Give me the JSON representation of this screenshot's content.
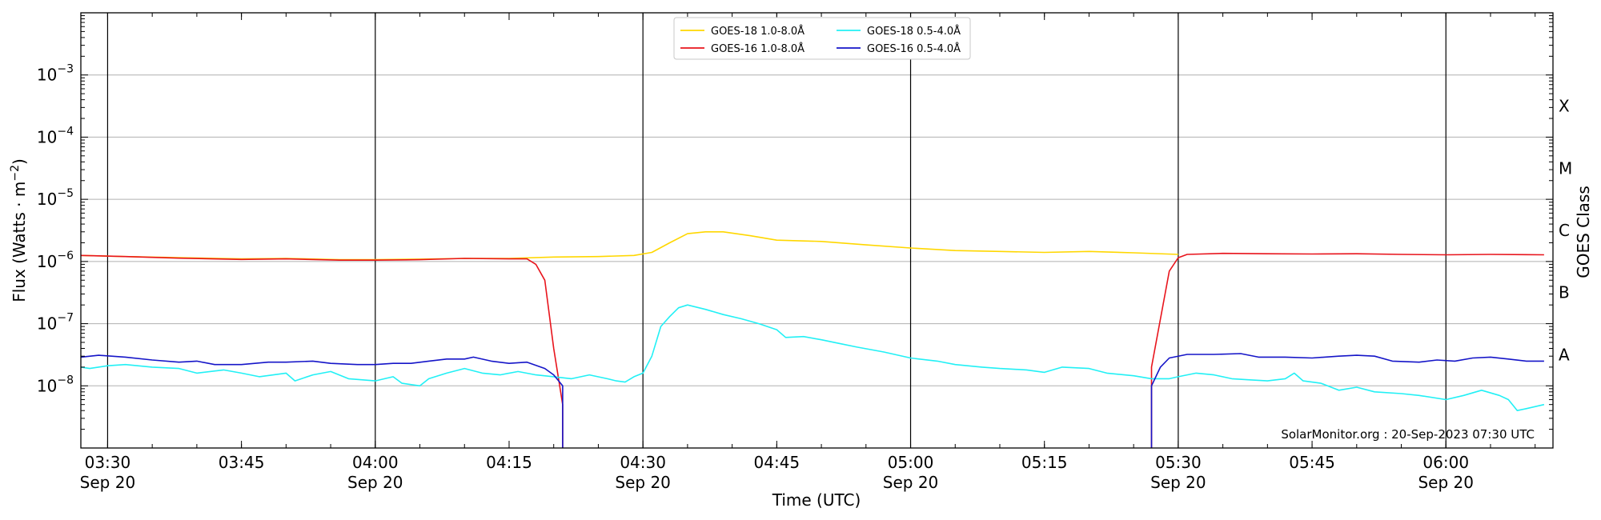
{
  "chart_data": {
    "type": "line",
    "title": "",
    "xlabel": "Time (UTC)",
    "ylabel": "Flux (Watts · m",
    "ylabel_sup": "−2",
    "ylabel_close": ")",
    "y2label": "GOES Class",
    "y_scale": "log",
    "xlim": [
      "03:27",
      "06:12"
    ],
    "ylim": [
      1e-09,
      0.01
    ],
    "grid": "horizontal at decades + vertical at half hours",
    "legend_position": "top-center",
    "credit": "SolarMonitor.org : 20-Sep-2023 07:30 UTC",
    "x_ticks": [
      {
        "t": "03:30",
        "label": "03:30",
        "date": "Sep 20"
      },
      {
        "t": "03:45",
        "label": "03:45",
        "date": ""
      },
      {
        "t": "04:00",
        "label": "04:00",
        "date": "Sep 20"
      },
      {
        "t": "04:15",
        "label": "04:15",
        "date": ""
      },
      {
        "t": "04:30",
        "label": "04:30",
        "date": "Sep 20"
      },
      {
        "t": "04:45",
        "label": "04:45",
        "date": ""
      },
      {
        "t": "05:00",
        "label": "05:00",
        "date": "Sep 20"
      },
      {
        "t": "05:15",
        "label": "05:15",
        "date": ""
      },
      {
        "t": "05:30",
        "label": "05:30",
        "date": "Sep 20"
      },
      {
        "t": "05:45",
        "label": "05:45",
        "date": ""
      },
      {
        "t": "06:00",
        "label": "06:00",
        "date": "Sep 20"
      }
    ],
    "y_ticks": [
      {
        "exp": -8,
        "base": "10",
        "sup": "−8"
      },
      {
        "exp": -7,
        "base": "10",
        "sup": "−7"
      },
      {
        "exp": -6,
        "base": "10",
        "sup": "−6"
      },
      {
        "exp": -5,
        "base": "10",
        "sup": "−5"
      },
      {
        "exp": -4,
        "base": "10",
        "sup": "−4"
      },
      {
        "exp": -3,
        "base": "10",
        "sup": "−3"
      }
    ],
    "goes_classes": [
      {
        "label": "A",
        "value": 1e-08
      },
      {
        "label": "B",
        "value": 1e-07
      },
      {
        "label": "C",
        "value": 1e-06
      },
      {
        "label": "M",
        "value": 1e-05
      },
      {
        "label": "X",
        "value": 0.0001
      }
    ],
    "series": [
      {
        "name": "GOES-18 1.0-8.0Å",
        "color": "#FFD700",
        "points": [
          [
            "03:27",
            1.25e-06
          ],
          [
            "03:32",
            1.2e-06
          ],
          [
            "03:38",
            1.15e-06
          ],
          [
            "03:45",
            1.1e-06
          ],
          [
            "03:50",
            1.12e-06
          ],
          [
            "03:56",
            1.07e-06
          ],
          [
            "04:00",
            1.07e-06
          ],
          [
            "04:05",
            1.09e-06
          ],
          [
            "04:10",
            1.12e-06
          ],
          [
            "04:15",
            1.12e-06
          ],
          [
            "04:20",
            1.18e-06
          ],
          [
            "04:25",
            1.2e-06
          ],
          [
            "04:29",
            1.25e-06
          ],
          [
            "04:31",
            1.4e-06
          ],
          [
            "04:33",
            2e-06
          ],
          [
            "04:35",
            2.8e-06
          ],
          [
            "04:37",
            3e-06
          ],
          [
            "04:39",
            3e-06
          ],
          [
            "04:42",
            2.6e-06
          ],
          [
            "04:45",
            2.2e-06
          ],
          [
            "04:50",
            2.1e-06
          ],
          [
            "04:55",
            1.85e-06
          ],
          [
            "05:00",
            1.65e-06
          ],
          [
            "05:05",
            1.5e-06
          ],
          [
            "05:10",
            1.45e-06
          ],
          [
            "05:15",
            1.4e-06
          ],
          [
            "05:20",
            1.45e-06
          ],
          [
            "05:25",
            1.38e-06
          ],
          [
            "05:30",
            1.3e-06
          ]
        ]
      },
      {
        "name": "GOES-16 1.0-8.0Å",
        "color": "#E8141C",
        "points": [
          [
            "03:27",
            1.25e-06
          ],
          [
            "03:32",
            1.2e-06
          ],
          [
            "03:38",
            1.13e-06
          ],
          [
            "03:45",
            1.08e-06
          ],
          [
            "03:50",
            1.1e-06
          ],
          [
            "03:56",
            1.05e-06
          ],
          [
            "04:00",
            1.05e-06
          ],
          [
            "04:05",
            1.07e-06
          ],
          [
            "04:10",
            1.12e-06
          ],
          [
            "04:15",
            1.1e-06
          ],
          [
            "04:17",
            1.1e-06
          ],
          [
            "04:18",
            9e-07
          ],
          [
            "04:19",
            5e-07
          ],
          [
            "04:20",
            4e-08
          ],
          [
            "04:21",
            5e-09
          ],
          [
            "04:21",
            1e-09
          ]
        ]
      },
      {
        "name": "GOES-16 1.0-8.0Å (resumed)",
        "color": "#E8141C",
        "points": [
          [
            "05:27",
            1e-09
          ],
          [
            "05:27",
            2e-08
          ],
          [
            "05:29",
            7e-07
          ],
          [
            "05:30",
            1.15e-06
          ],
          [
            "05:31",
            1.3e-06
          ],
          [
            "05:35",
            1.35e-06
          ],
          [
            "05:40",
            1.33e-06
          ],
          [
            "05:45",
            1.32e-06
          ],
          [
            "05:50",
            1.33e-06
          ],
          [
            "05:55",
            1.3e-06
          ],
          [
            "06:00",
            1.28e-06
          ],
          [
            "06:05",
            1.3e-06
          ],
          [
            "06:11",
            1.28e-06
          ]
        ]
      },
      {
        "name": "GOES-18 0.5-4.0Å",
        "color": "#22F0F5",
        "points": [
          [
            "03:27",
            2e-08
          ],
          [
            "03:28",
            1.9e-08
          ],
          [
            "03:30",
            2.1e-08
          ],
          [
            "03:32",
            2.2e-08
          ],
          [
            "03:35",
            2e-08
          ],
          [
            "03:38",
            1.9e-08
          ],
          [
            "03:40",
            1.6e-08
          ],
          [
            "03:43",
            1.8e-08
          ],
          [
            "03:45",
            1.6e-08
          ],
          [
            "03:47",
            1.4e-08
          ],
          [
            "03:50",
            1.6e-08
          ],
          [
            "03:51",
            1.2e-08
          ],
          [
            "03:53",
            1.5e-08
          ],
          [
            "03:55",
            1.7e-08
          ],
          [
            "03:57",
            1.3e-08
          ],
          [
            "04:00",
            1.2e-08
          ],
          [
            "04:02",
            1.4e-08
          ],
          [
            "04:03",
            1.1e-08
          ],
          [
            "04:05",
            1e-08
          ],
          [
            "04:06",
            1.3e-08
          ],
          [
            "04:08",
            1.6e-08
          ],
          [
            "04:10",
            1.9e-08
          ],
          [
            "04:12",
            1.6e-08
          ],
          [
            "04:14",
            1.5e-08
          ],
          [
            "04:16",
            1.7e-08
          ],
          [
            "04:18",
            1.5e-08
          ],
          [
            "04:20",
            1.4e-08
          ],
          [
            "04:22",
            1.3e-08
          ],
          [
            "04:24",
            1.5e-08
          ],
          [
            "04:26",
            1.3e-08
          ],
          [
            "04:27",
            1.2e-08
          ],
          [
            "04:28",
            1.15e-08
          ],
          [
            "04:29",
            1.4e-08
          ],
          [
            "04:30",
            1.6e-08
          ],
          [
            "04:31",
            3e-08
          ],
          [
            "04:32",
            9e-08
          ],
          [
            "04:33",
            1.3e-07
          ],
          [
            "04:34",
            1.8e-07
          ],
          [
            "04:35",
            2e-07
          ],
          [
            "04:37",
            1.7e-07
          ],
          [
            "04:39",
            1.4e-07
          ],
          [
            "04:41",
            1.2e-07
          ],
          [
            "04:43",
            1e-07
          ],
          [
            "04:45",
            8e-08
          ],
          [
            "04:46",
            6e-08
          ],
          [
            "04:48",
            6.2e-08
          ],
          [
            "04:50",
            5.5e-08
          ],
          [
            "04:52",
            4.8e-08
          ],
          [
            "04:54",
            4.2e-08
          ],
          [
            "04:57",
            3.5e-08
          ],
          [
            "05:00",
            2.8e-08
          ],
          [
            "05:03",
            2.5e-08
          ],
          [
            "05:05",
            2.2e-08
          ],
          [
            "05:08",
            2e-08
          ],
          [
            "05:10",
            1.9e-08
          ],
          [
            "05:13",
            1.8e-08
          ],
          [
            "05:15",
            1.65e-08
          ],
          [
            "05:17",
            2e-08
          ],
          [
            "05:20",
            1.9e-08
          ],
          [
            "05:22",
            1.6e-08
          ],
          [
            "05:25",
            1.45e-08
          ],
          [
            "05:27",
            1.3e-08
          ],
          [
            "05:29",
            1.3e-08
          ],
          [
            "05:30",
            1.4e-08
          ],
          [
            "05:32",
            1.6e-08
          ],
          [
            "05:34",
            1.5e-08
          ],
          [
            "05:36",
            1.3e-08
          ],
          [
            "05:38",
            1.25e-08
          ],
          [
            "05:40",
            1.2e-08
          ],
          [
            "05:42",
            1.3e-08
          ],
          [
            "05:43",
            1.6e-08
          ],
          [
            "05:44",
            1.2e-08
          ],
          [
            "05:46",
            1.1e-08
          ],
          [
            "05:48",
            8.5e-09
          ],
          [
            "05:50",
            9.5e-09
          ],
          [
            "05:52",
            8e-09
          ],
          [
            "05:55",
            7.5e-09
          ],
          [
            "05:57",
            7e-09
          ],
          [
            "06:00",
            6e-09
          ],
          [
            "06:02",
            7e-09
          ],
          [
            "06:04",
            8.5e-09
          ],
          [
            "06:06",
            7e-09
          ],
          [
            "06:07",
            6e-09
          ],
          [
            "06:08",
            4e-09
          ],
          [
            "06:09",
            4.3e-09
          ],
          [
            "06:11",
            5e-09
          ]
        ]
      },
      {
        "name": "GOES-16 0.5-4.0Å",
        "color": "#1515C8",
        "points": [
          [
            "03:27",
            2.9e-08
          ],
          [
            "03:29",
            3.1e-08
          ],
          [
            "03:32",
            2.9e-08
          ],
          [
            "03:35",
            2.6e-08
          ],
          [
            "03:38",
            2.4e-08
          ],
          [
            "03:40",
            2.5e-08
          ],
          [
            "03:42",
            2.2e-08
          ],
          [
            "03:45",
            2.2e-08
          ],
          [
            "03:48",
            2.4e-08
          ],
          [
            "03:50",
            2.4e-08
          ],
          [
            "03:53",
            2.5e-08
          ],
          [
            "03:55",
            2.3e-08
          ],
          [
            "03:58",
            2.2e-08
          ],
          [
            "04:00",
            2.2e-08
          ],
          [
            "04:02",
            2.3e-08
          ],
          [
            "04:04",
            2.3e-08
          ],
          [
            "04:06",
            2.5e-08
          ],
          [
            "04:08",
            2.7e-08
          ],
          [
            "04:10",
            2.7e-08
          ],
          [
            "04:11",
            2.9e-08
          ],
          [
            "04:13",
            2.5e-08
          ],
          [
            "04:15",
            2.3e-08
          ],
          [
            "04:17",
            2.4e-08
          ],
          [
            "04:19",
            1.9e-08
          ],
          [
            "04:20",
            1.5e-08
          ],
          [
            "04:21",
            1e-08
          ],
          [
            "04:21",
            1e-09
          ]
        ]
      },
      {
        "name": "GOES-16 0.5-4.0Å (resumed)",
        "color": "#1515C8",
        "points": [
          [
            "05:27",
            1e-09
          ],
          [
            "05:27",
            1e-08
          ],
          [
            "05:28",
            2e-08
          ],
          [
            "05:29",
            2.8e-08
          ],
          [
            "05:31",
            3.2e-08
          ],
          [
            "05:34",
            3.2e-08
          ],
          [
            "05:37",
            3.3e-08
          ],
          [
            "05:39",
            2.9e-08
          ],
          [
            "05:42",
            2.9e-08
          ],
          [
            "05:45",
            2.8e-08
          ],
          [
            "05:48",
            3e-08
          ],
          [
            "05:50",
            3.1e-08
          ],
          [
            "05:52",
            3e-08
          ],
          [
            "05:54",
            2.5e-08
          ],
          [
            "05:57",
            2.4e-08
          ],
          [
            "05:59",
            2.6e-08
          ],
          [
            "06:01",
            2.5e-08
          ],
          [
            "06:03",
            2.8e-08
          ],
          [
            "06:05",
            2.9e-08
          ],
          [
            "06:07",
            2.7e-08
          ],
          [
            "06:09",
            2.5e-08
          ],
          [
            "06:11",
            2.5e-08
          ]
        ]
      }
    ],
    "legend": [
      {
        "label": "GOES-18 1.0-8.0Å",
        "color": "#FFD700"
      },
      {
        "label": "GOES-16 1.0-8.0Å",
        "color": "#E8141C"
      },
      {
        "label": "GOES-18 0.5-4.0Å",
        "color": "#22F0F5"
      },
      {
        "label": "GOES-16 0.5-4.0Å",
        "color": "#1515C8"
      }
    ]
  }
}
